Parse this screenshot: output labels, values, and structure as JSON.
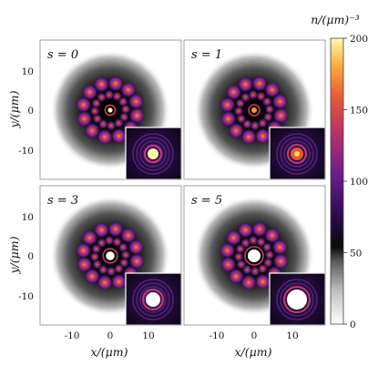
{
  "chart_data": {
    "type": "heatmap",
    "colorbar": {
      "label": "n/(μm)⁻³",
      "range": [
        0,
        200
      ],
      "ticks": [
        0,
        50,
        100,
        150,
        200
      ],
      "colormap": [
        "#ffffff",
        "#9c9c9c",
        "#1a1a1a",
        "#000000",
        "#3a0d5e",
        "#7a1f8c",
        "#c0396b",
        "#ee6a2e",
        "#fbb23a",
        "#fcfda4"
      ]
    },
    "xlabel": "x/(μm)",
    "ylabel": "y/(μm)",
    "xticks": [
      -10,
      0,
      10
    ],
    "yticks": [
      10,
      0,
      -10
    ],
    "panels": [
      {
        "label": "s = 0",
        "s": 0
      },
      {
        "label": "s = 1",
        "s": 1
      },
      {
        "label": "s = 3",
        "s": 3
      },
      {
        "label": "s = 5",
        "s": 5
      }
    ],
    "petals": 12
  }
}
